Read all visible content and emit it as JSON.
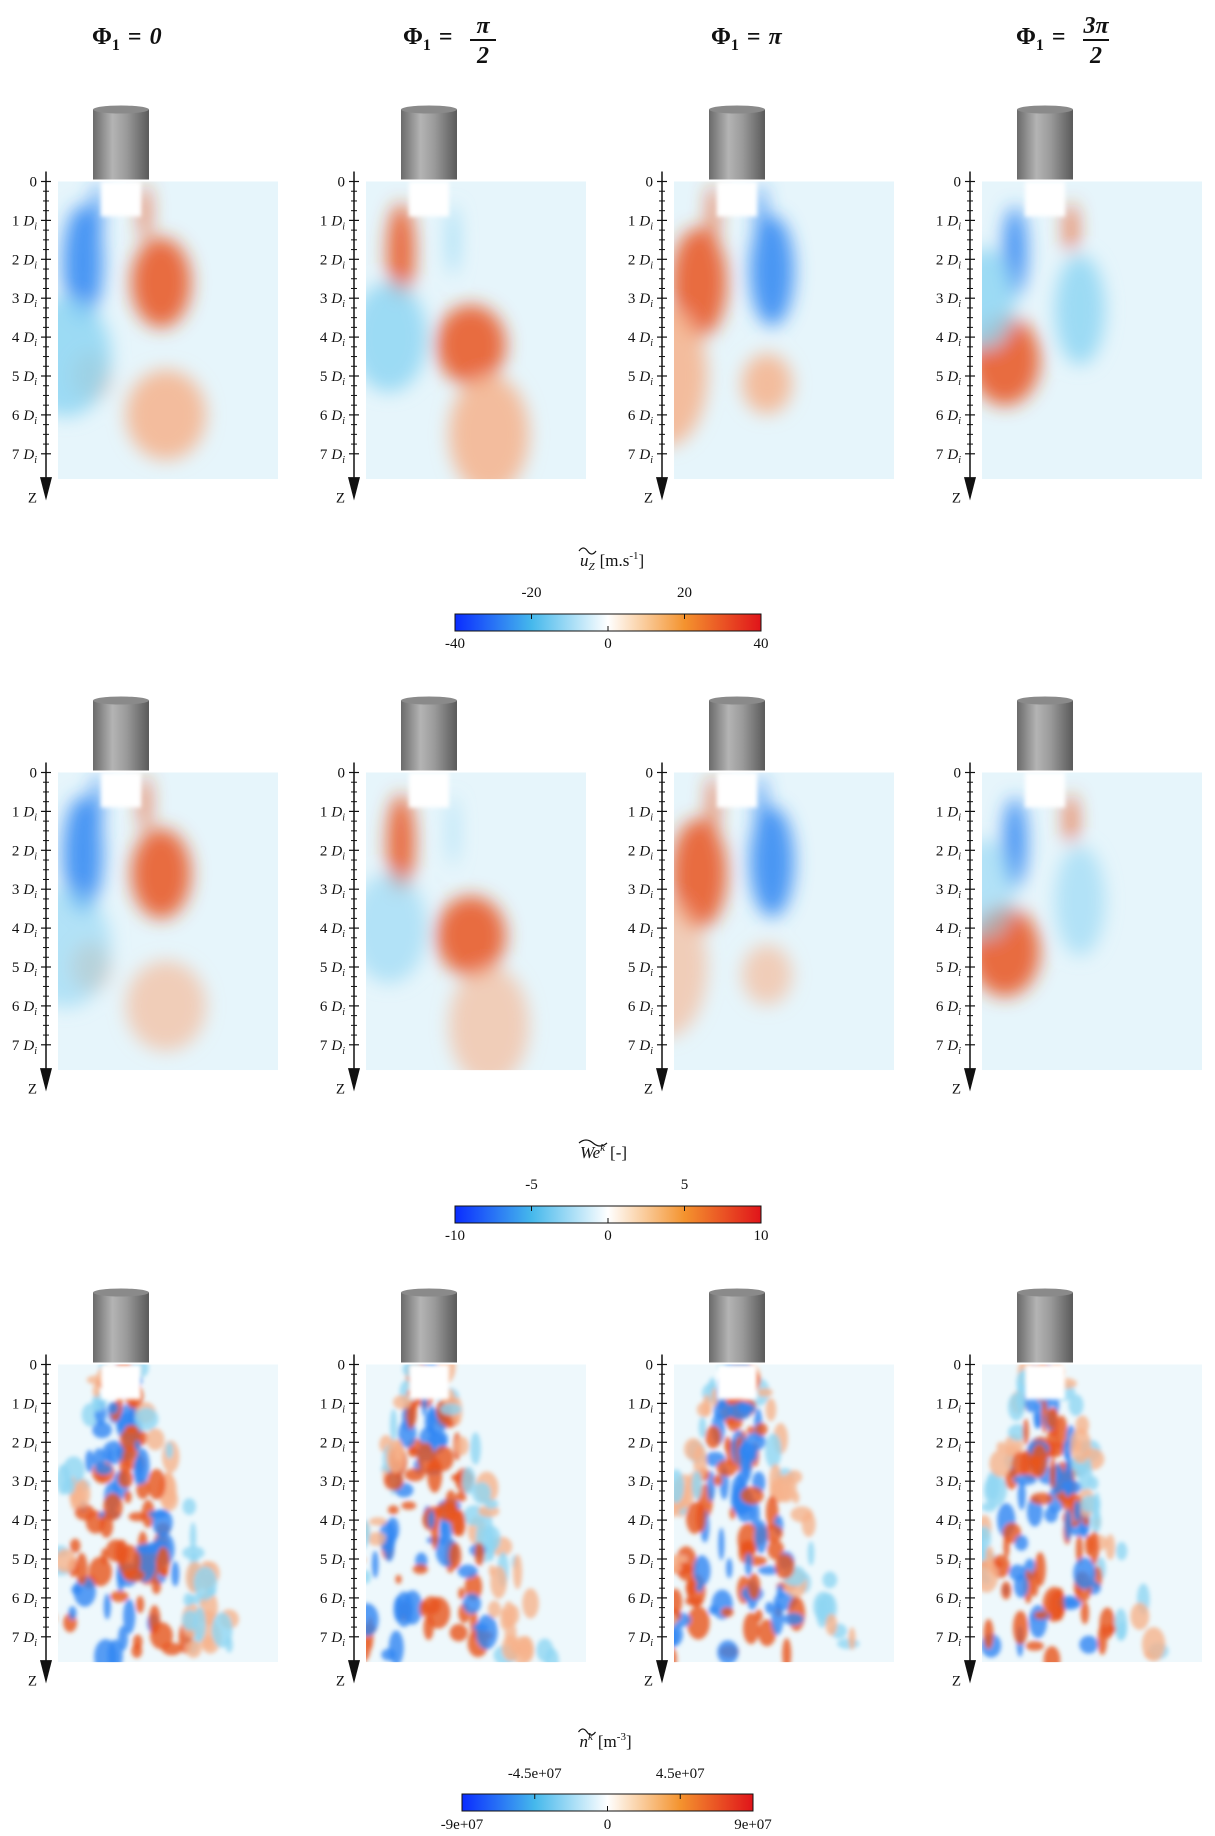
{
  "headers": [
    {
      "symbol": "Φ",
      "sub": "1",
      "eq": "=",
      "value": "0"
    },
    {
      "symbol": "Φ",
      "sub": "1",
      "eq": "=",
      "num": "π",
      "den": "2"
    },
    {
      "symbol": "Φ",
      "sub": "1",
      "eq": "=",
      "value": "π"
    },
    {
      "symbol": "Φ",
      "sub": "1",
      "eq": "=",
      "num": "3π",
      "den": "2"
    }
  ],
  "depth_axis": {
    "ticks": [
      0,
      1,
      2,
      3,
      4,
      5,
      6,
      7
    ],
    "unit": "D",
    "unit_sub": "i",
    "label": "Z"
  },
  "colorbars": [
    {
      "symbol": "u",
      "symbol_sub": "Z",
      "unit": "[m.s",
      "unit_sup": "-1",
      "unit_end": "]",
      "lim": [
        -40,
        40
      ],
      "ticks": [
        -40,
        -20,
        0,
        20,
        40
      ],
      "colors": [
        "#0a2cff",
        "#45b8ec",
        "#ffffff",
        "#f4932e",
        "#e0141a"
      ]
    },
    {
      "symbol": "We",
      "symbol_sup": "k",
      "unit": "[-]",
      "lim": [
        -10,
        10
      ],
      "ticks": [
        -10,
        -5,
        0,
        5,
        10
      ],
      "colors": [
        "#0a2cff",
        "#45b8ec",
        "#ffffff",
        "#f4932e",
        "#e0141a"
      ]
    },
    {
      "symbol": "n",
      "symbol_sup": "k",
      "unit": "[m",
      "unit_sup": "-3",
      "unit_end": "]",
      "lim": [
        -90000000,
        90000000
      ],
      "ticks": [
        {
          "value": -90000000,
          "label": "-9e+07"
        },
        {
          "value": -45000000,
          "label": "-4.5e+07"
        },
        0,
        {
          "value": 45000000,
          "label": "4.5e+07"
        },
        {
          "value": 90000000,
          "label": "9e+07"
        }
      ],
      "colors": [
        "#0a2cff",
        "#45b8ec",
        "#ffffff",
        "#f4932e",
        "#e0141a"
      ]
    }
  ]
}
